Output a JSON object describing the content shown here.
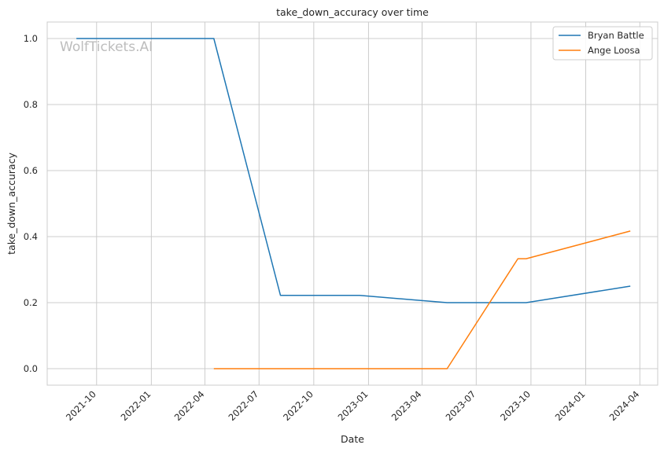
{
  "watermark": "WolfTickets.AI",
  "chart_data": {
    "type": "line",
    "title": "take_down_accuracy over time",
    "xlabel": "Date",
    "ylabel": "take_down_accuracy",
    "x_axis_type": "date",
    "xlim": [
      "2021-07-10",
      "2024-05-01"
    ],
    "ylim": [
      -0.05,
      1.05
    ],
    "x_ticks": [
      "2021-10",
      "2022-01",
      "2022-04",
      "2022-07",
      "2022-10",
      "2023-01",
      "2023-04",
      "2023-07",
      "2023-10",
      "2024-01",
      "2024-04"
    ],
    "y_ticks": [
      "0.0",
      "0.2",
      "0.4",
      "0.6",
      "0.8",
      "1.0"
    ],
    "grid": true,
    "legend_position": "top-right",
    "series": [
      {
        "name": "Bryan Battle",
        "color": "#1f77b4",
        "points": [
          {
            "x": "2021-08-28",
            "y": 1.0
          },
          {
            "x": "2022-04-16",
            "y": 1.0
          },
          {
            "x": "2022-08-06",
            "y": 0.222
          },
          {
            "x": "2022-12-17",
            "y": 0.222
          },
          {
            "x": "2023-05-13",
            "y": 0.2
          },
          {
            "x": "2023-09-23",
            "y": 0.2
          },
          {
            "x": "2024-03-16",
            "y": 0.25
          }
        ]
      },
      {
        "name": "Ange Loosa",
        "color": "#ff7f0e",
        "points": [
          {
            "x": "2022-04-16",
            "y": 0.0
          },
          {
            "x": "2023-05-13",
            "y": 0.0
          },
          {
            "x": "2023-09-09",
            "y": 0.333
          },
          {
            "x": "2023-09-23",
            "y": 0.333
          },
          {
            "x": "2024-03-16",
            "y": 0.417
          }
        ]
      }
    ]
  }
}
